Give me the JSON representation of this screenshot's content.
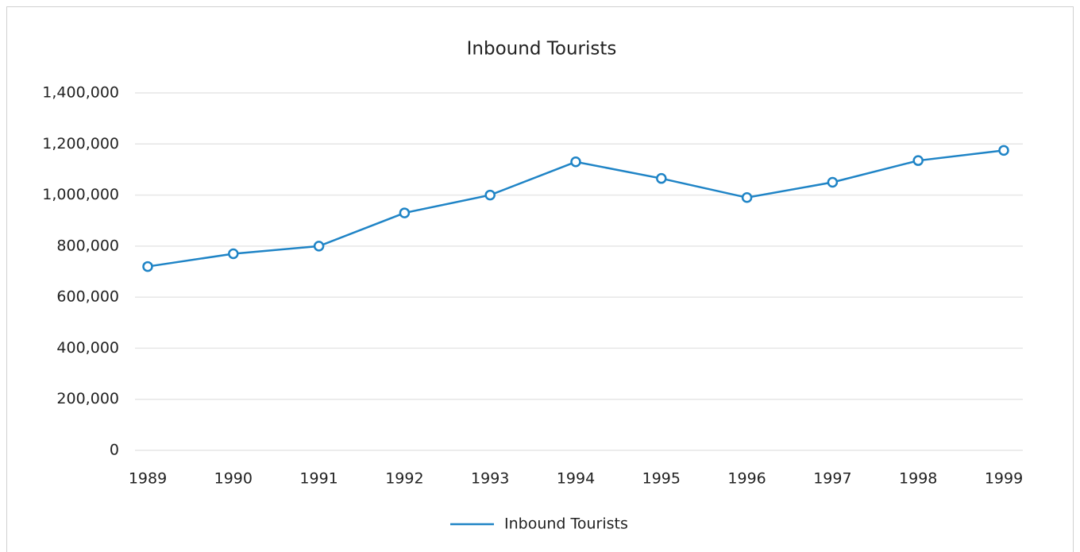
{
  "chart_data": {
    "type": "line",
    "title": "Inbound Tourists",
    "categories": [
      "1989",
      "1990",
      "1991",
      "1992",
      "1993",
      "1994",
      "1995",
      "1996",
      "1997",
      "1998",
      "1999"
    ],
    "series": [
      {
        "name": "Inbound Tourists",
        "color": "#1f84c6",
        "values": [
          720000,
          770000,
          800000,
          930000,
          1000000,
          1130000,
          1065000,
          990000,
          1050000,
          1135000,
          1175000
        ]
      }
    ],
    "ylim": [
      0,
      1400000
    ],
    "yticks": [
      0,
      {
        "value": 200000,
        "label": "200,000"
      },
      {
        "value": 400000,
        "label": "400,000"
      },
      {
        "value": 600000,
        "label": "600,000"
      },
      {
        "value": 800000,
        "label": "800,000"
      },
      {
        "value": 1000000,
        "label": "1,000,000"
      },
      {
        "value": 1200000,
        "label": "1,200,000"
      },
      {
        "value": 1400000,
        "label": "1,400,000"
      }
    ],
    "grid": true,
    "legend": "bottom"
  }
}
